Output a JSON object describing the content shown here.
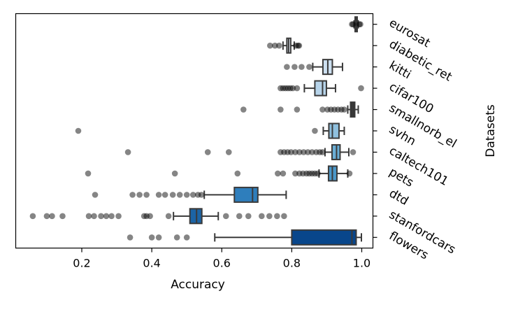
{
  "chart_data": {
    "type": "boxplot",
    "orientation": "horizontal",
    "xlabel": "Accuracy",
    "ylabel": "Datasets",
    "xlim": [
      0.04,
      1.05
    ],
    "xticks": [
      0.2,
      0.4,
      0.6,
      0.8,
      1.0
    ],
    "xtick_labels": [
      "0.2",
      "0.4",
      "0.6",
      "0.8",
      "1.0"
    ],
    "grid": false,
    "categories": [
      "eurosat",
      "diabetic_ret",
      "kitti",
      "cifar100",
      "smallnorb_el",
      "svhn",
      "caltech101",
      "pets",
      "dtd",
      "stanfordcars",
      "flowers"
    ],
    "boxes": [
      {
        "color": "#ffffff",
        "whislo": 0.978,
        "q1": 0.981,
        "med": 0.984,
        "q3": 0.987,
        "whishi": 0.99,
        "fliers": [
          0.972,
          0.975,
          0.993,
          0.996
        ]
      },
      {
        "color": "#eaf2fa",
        "whislo": 0.775,
        "q1": 0.786,
        "med": 0.791,
        "q3": 0.797,
        "whishi": 0.807,
        "fliers": [
          0.738,
          0.752,
          0.764,
          0.812,
          0.818,
          0.821
        ]
      },
      {
        "color": "#cde0f1",
        "whislo": 0.86,
        "q1": 0.889,
        "med": 0.903,
        "q3": 0.916,
        "whishi": 0.945,
        "fliers": [
          0.786,
          0.808,
          0.828,
          0.85
        ]
      },
      {
        "color": "#b7d4ea",
        "whislo": 0.836,
        "q1": 0.866,
        "med": 0.888,
        "q3": 0.899,
        "whishi": 0.925,
        "fliers": [
          0.768,
          0.775,
          0.782,
          0.789,
          0.796,
          0.803,
          0.815,
          0.998
        ]
      },
      {
        "color": "#333333",
        "whislo": 0.96,
        "q1": 0.968,
        "med": 0.974,
        "q3": 0.98,
        "whishi": 0.99,
        "fliers": [
          0.662,
          0.768,
          0.815,
          0.888,
          0.902,
          0.912,
          0.922,
          0.932,
          0.942,
          0.95
        ]
      },
      {
        "color": "#8fc0de",
        "whislo": 0.89,
        "q1": 0.906,
        "med": 0.916,
        "q3": 0.935,
        "whishi": 0.95,
        "fliers": [
          0.19,
          0.866
        ]
      },
      {
        "color": "#6aaed6",
        "whislo": 0.895,
        "q1": 0.915,
        "med": 0.928,
        "q3": 0.938,
        "whishi": 0.963,
        "fliers": [
          0.332,
          0.56,
          0.62,
          0.768,
          0.778,
          0.788,
          0.798,
          0.81,
          0.822,
          0.834,
          0.846,
          0.858,
          0.87,
          0.88,
          0.888,
          0.975
        ]
      },
      {
        "color": "#4b98ca",
        "whislo": 0.878,
        "q1": 0.905,
        "med": 0.916,
        "q3": 0.929,
        "whishi": 0.96,
        "fliers": [
          0.218,
          0.466,
          0.645,
          0.76,
          0.775,
          0.81,
          0.822,
          0.832,
          0.842,
          0.85,
          0.858,
          0.866,
          0.874,
          0.965
        ]
      },
      {
        "color": "#2e7ebc",
        "whislo": 0.55,
        "q1": 0.636,
        "med": 0.688,
        "q3": 0.703,
        "whishi": 0.784,
        "fliers": [
          0.238,
          0.345,
          0.365,
          0.385,
          0.42,
          0.438,
          0.46,
          0.48,
          0.5,
          0.518,
          0.532,
          0.542
        ]
      },
      {
        "color": "#1c64a5",
        "whislo": 0.462,
        "q1": 0.509,
        "med": 0.528,
        "q3": 0.543,
        "whishi": 0.59,
        "fliers": [
          0.06,
          0.1,
          0.115,
          0.145,
          0.22,
          0.235,
          0.255,
          0.27,
          0.285,
          0.305,
          0.378,
          0.385,
          0.395,
          0.448,
          0.612,
          0.65,
          0.676,
          0.714,
          0.736,
          0.758,
          0.778
        ]
      },
      {
        "color": "#08468b",
        "whislo": 0.58,
        "q1": 0.8,
        "med": 0.972,
        "q3": 0.984,
        "whishi": 0.999,
        "fliers": [
          0.338,
          0.4,
          0.42,
          0.472,
          0.5
        ]
      }
    ]
  }
}
